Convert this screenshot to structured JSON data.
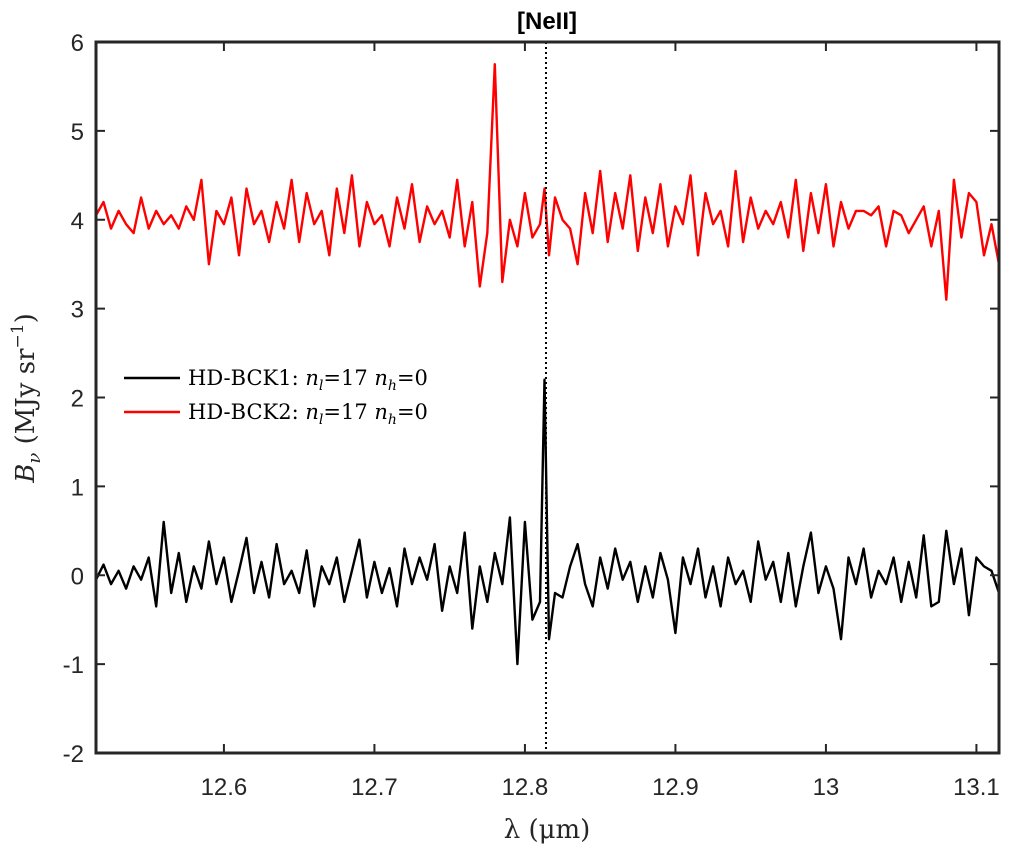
{
  "chart_data": {
    "type": "line",
    "title": "[NeII]",
    "xlabel": "λ (μm)",
    "ylabel_symbol": "B",
    "ylabel_subscript": "ν",
    "ylabel_units": " (MJy sr",
    "ylabel_exponent": "−1",
    "ylabel_close": ")",
    "xlim": [
      12.515,
      13.115
    ],
    "ylim": [
      -2,
      6
    ],
    "xticks": [
      12.6,
      12.7,
      12.8,
      12.9,
      13,
      13.1
    ],
    "xtick_labels": [
      "12.6",
      "12.7",
      "12.8",
      "12.9",
      "13",
      "13.1"
    ],
    "yticks": [
      -2,
      -1,
      0,
      1,
      2,
      3,
      4,
      5,
      6
    ],
    "ytick_labels": [
      "-2",
      "-1",
      "0",
      "1",
      "2",
      "3",
      "4",
      "5",
      "6"
    ],
    "reference_line_x": 12.814,
    "grid": false,
    "legend_position": "left",
    "series": [
      {
        "name_prefix": "HD-BCK1:  ",
        "name_n_l": "17",
        "name_n_h": "0",
        "color": "#000000",
        "x": [
          12.515,
          12.52,
          12.525,
          12.53,
          12.535,
          12.54,
          12.545,
          12.55,
          12.555,
          12.56,
          12.565,
          12.57,
          12.575,
          12.58,
          12.585,
          12.59,
          12.595,
          12.6,
          12.605,
          12.61,
          12.615,
          12.62,
          12.625,
          12.63,
          12.635,
          12.64,
          12.645,
          12.65,
          12.655,
          12.66,
          12.665,
          12.67,
          12.675,
          12.68,
          12.685,
          12.69,
          12.695,
          12.7,
          12.705,
          12.71,
          12.715,
          12.72,
          12.725,
          12.73,
          12.735,
          12.74,
          12.745,
          12.75,
          12.755,
          12.76,
          12.765,
          12.77,
          12.775,
          12.78,
          12.785,
          12.79,
          12.795,
          12.8,
          12.805,
          12.81,
          12.813,
          12.816,
          12.82,
          12.825,
          12.83,
          12.835,
          12.84,
          12.845,
          12.85,
          12.855,
          12.86,
          12.865,
          12.87,
          12.875,
          12.88,
          12.885,
          12.89,
          12.895,
          12.9,
          12.905,
          12.91,
          12.915,
          12.92,
          12.925,
          12.93,
          12.935,
          12.94,
          12.945,
          12.95,
          12.955,
          12.96,
          12.965,
          12.97,
          12.975,
          12.98,
          12.985,
          12.99,
          12.995,
          13,
          13.005,
          13.01,
          13.015,
          13.02,
          13.025,
          13.03,
          13.035,
          13.04,
          13.045,
          13.05,
          13.055,
          13.06,
          13.065,
          13.07,
          13.075,
          13.08,
          13.085,
          13.09,
          13.095,
          13.1,
          13.105,
          13.11,
          13.115
        ],
        "values": [
          -0.05,
          0.12,
          -0.1,
          0.05,
          -0.15,
          0.1,
          -0.05,
          0.2,
          -0.35,
          0.6,
          -0.2,
          0.25,
          -0.3,
          0.1,
          -0.15,
          0.38,
          -0.1,
          0.2,
          -0.3,
          0.05,
          0.42,
          -0.2,
          0.15,
          -0.25,
          0.35,
          -0.1,
          0.05,
          -0.2,
          0.28,
          -0.35,
          0.1,
          -0.1,
          0.2,
          -0.3,
          0.05,
          0.4,
          -0.25,
          0.15,
          -0.2,
          0.08,
          -0.35,
          0.3,
          -0.1,
          0.2,
          -0.05,
          0.35,
          -0.4,
          0.1,
          -0.2,
          0.48,
          -0.6,
          0.1,
          -0.3,
          0.25,
          -0.1,
          0.65,
          -1.0,
          0.6,
          -0.5,
          -0.3,
          2.2,
          -0.72,
          -0.2,
          -0.25,
          0.1,
          0.35,
          -0.1,
          -0.35,
          0.2,
          -0.15,
          0.3,
          -0.05,
          0.15,
          -0.3,
          0.1,
          -0.25,
          0.25,
          -0.05,
          -0.65,
          0.2,
          -0.1,
          0.3,
          -0.25,
          0.1,
          -0.35,
          0.2,
          -0.1,
          0.05,
          -0.3,
          0.38,
          -0.05,
          0.15,
          -0.3,
          0.25,
          -0.35,
          0.1,
          0.48,
          -0.2,
          0.1,
          -0.15,
          -0.72,
          0.2,
          -0.1,
          0.3,
          -0.25,
          0.05,
          -0.1,
          0.2,
          -0.3,
          0.15,
          -0.25,
          0.45,
          -0.35,
          -0.3,
          0.5,
          -0.1,
          0.3,
          -0.45,
          0.2,
          0.1,
          0.05,
          -0.2
        ]
      },
      {
        "name_prefix": "HD-BCK2:  ",
        "name_n_l": "17",
        "name_n_h": "0",
        "color": "#ff0000",
        "x": [
          12.515,
          12.52,
          12.525,
          12.53,
          12.535,
          12.54,
          12.545,
          12.55,
          12.555,
          12.56,
          12.565,
          12.57,
          12.575,
          12.58,
          12.585,
          12.59,
          12.595,
          12.6,
          12.605,
          12.61,
          12.615,
          12.62,
          12.625,
          12.63,
          12.635,
          12.64,
          12.645,
          12.65,
          12.655,
          12.66,
          12.665,
          12.67,
          12.675,
          12.68,
          12.685,
          12.69,
          12.695,
          12.7,
          12.705,
          12.71,
          12.715,
          12.72,
          12.725,
          12.73,
          12.735,
          12.74,
          12.745,
          12.75,
          12.755,
          12.76,
          12.765,
          12.77,
          12.775,
          12.78,
          12.785,
          12.79,
          12.795,
          12.8,
          12.805,
          12.81,
          12.813,
          12.816,
          12.82,
          12.825,
          12.83,
          12.835,
          12.84,
          12.845,
          12.85,
          12.855,
          12.86,
          12.865,
          12.87,
          12.875,
          12.88,
          12.885,
          12.89,
          12.895,
          12.9,
          12.905,
          12.91,
          12.915,
          12.92,
          12.925,
          12.93,
          12.935,
          12.94,
          12.945,
          12.95,
          12.955,
          12.96,
          12.965,
          12.97,
          12.975,
          12.98,
          12.985,
          12.99,
          12.995,
          13,
          13.005,
          13.01,
          13.015,
          13.02,
          13.025,
          13.03,
          13.035,
          13.04,
          13.045,
          13.05,
          13.055,
          13.06,
          13.065,
          13.07,
          13.075,
          13.08,
          13.085,
          13.09,
          13.095,
          13.1,
          13.105,
          13.11,
          13.115
        ],
        "values": [
          4.05,
          4.2,
          3.9,
          4.1,
          3.95,
          3.85,
          4.25,
          3.9,
          4.1,
          3.95,
          4.05,
          3.9,
          4.15,
          4.0,
          4.45,
          3.5,
          4.1,
          3.95,
          4.25,
          3.6,
          4.35,
          3.95,
          4.1,
          3.75,
          4.2,
          3.9,
          4.45,
          3.75,
          4.3,
          3.95,
          4.1,
          3.6,
          4.35,
          3.85,
          4.5,
          3.7,
          4.2,
          3.95,
          4.05,
          3.7,
          4.25,
          3.9,
          4.4,
          3.75,
          4.15,
          3.95,
          4.1,
          3.8,
          4.45,
          3.7,
          4.2,
          3.25,
          3.85,
          5.75,
          3.3,
          4.0,
          3.7,
          4.3,
          3.8,
          3.95,
          4.35,
          3.6,
          4.25,
          4.0,
          3.9,
          3.5,
          4.3,
          3.85,
          4.55,
          3.75,
          4.3,
          3.9,
          4.5,
          3.65,
          4.25,
          3.85,
          4.4,
          3.7,
          4.15,
          3.95,
          4.5,
          3.6,
          4.3,
          3.95,
          4.1,
          3.7,
          4.55,
          3.75,
          4.25,
          3.9,
          4.1,
          3.95,
          4.2,
          3.8,
          4.45,
          3.65,
          4.3,
          3.85,
          4.4,
          3.7,
          4.2,
          3.9,
          4.1,
          4.1,
          4.05,
          4.15,
          3.7,
          4.1,
          4.05,
          3.85,
          4.0,
          4.15,
          3.7,
          4.1,
          3.1,
          4.45,
          3.8,
          4.3,
          4.2,
          3.6,
          3.95,
          3.5
        ]
      }
    ]
  }
}
